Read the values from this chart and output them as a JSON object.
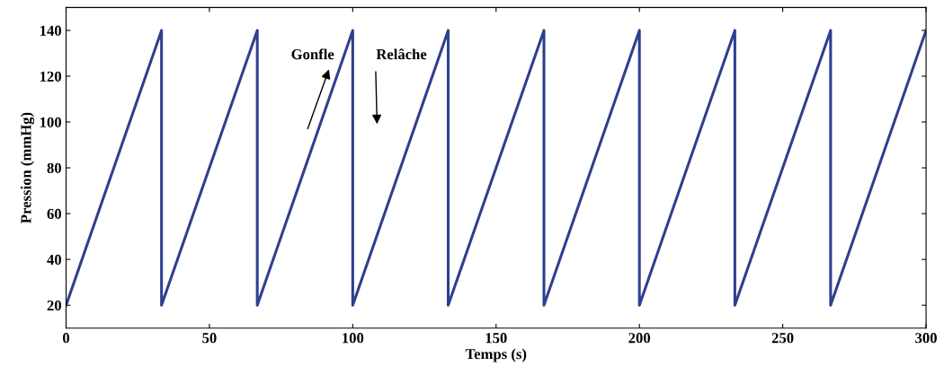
{
  "chart_data": {
    "type": "line",
    "xlabel": "Temps (s)",
    "ylabel": "Pression (mmHg)",
    "x": [
      0,
      33.3,
      33.3,
      66.7,
      66.7,
      100,
      100,
      133.3,
      133.3,
      166.7,
      166.7,
      200,
      200,
      233.3,
      233.3,
      266.7,
      266.7,
      300
    ],
    "series": [
      {
        "color": "#2e3f8f",
        "values": [
          20,
          140,
          20,
          140,
          20,
          140,
          20,
          140,
          20,
          140,
          20,
          140,
          20,
          140,
          20,
          140,
          20,
          140
        ]
      }
    ],
    "xlim": [
      0,
      300
    ],
    "xticks": [
      0,
      50,
      100,
      150,
      200,
      250,
      300
    ],
    "ylim": [
      10,
      150
    ],
    "yticks": [
      20,
      40,
      60,
      80,
      100,
      120,
      140
    ],
    "grid": false,
    "legend": false,
    "marker": "none",
    "line_style": "solid",
    "annotations": [
      "Gonfle",
      "Relâche"
    ]
  }
}
